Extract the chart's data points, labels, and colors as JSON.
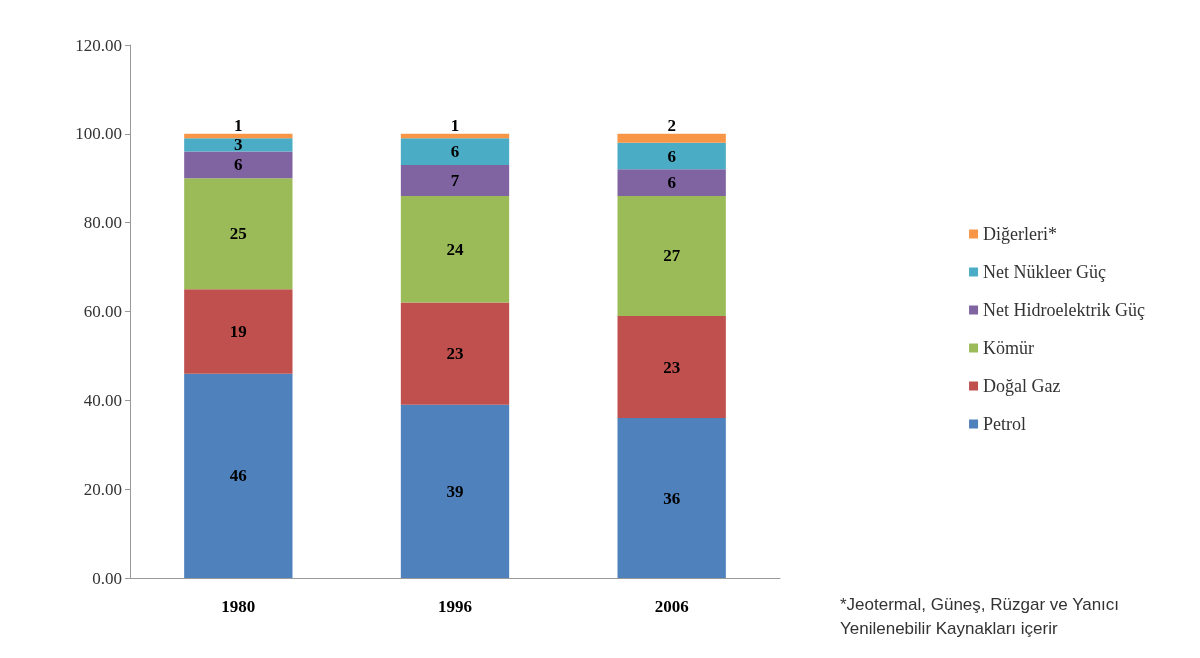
{
  "chart_data": {
    "type": "bar",
    "stacked": true,
    "categories": [
      "1980",
      "1996",
      "2006"
    ],
    "series": [
      {
        "name": "Petrol",
        "color": "#4f81bd",
        "values": [
          46,
          39,
          36
        ]
      },
      {
        "name": "Doğal Gaz",
        "color": "#c0504d",
        "values": [
          19,
          23,
          23
        ]
      },
      {
        "name": "Kömür",
        "color": "#9bbb59",
        "values": [
          25,
          24,
          27
        ]
      },
      {
        "name": "Net Hidroelektrik Güç",
        "color": "#8064a2",
        "values": [
          6,
          7,
          6
        ]
      },
      {
        "name": "Net Nükleer Güç",
        "color": "#4bacc6",
        "values": [
          3,
          6,
          6
        ]
      },
      {
        "name": "Diğerleri*",
        "color": "#f79646",
        "values": [
          1,
          1,
          2
        ]
      }
    ],
    "ylim": [
      0,
      120
    ],
    "yticks": [
      {
        "value": 0,
        "label": "0.00"
      },
      {
        "value": 20,
        "label": "20.00"
      },
      {
        "value": 40,
        "label": "40.00"
      },
      {
        "value": 60,
        "label": "60.00"
      },
      {
        "value": 80,
        "label": "80.00"
      },
      {
        "value": 100,
        "label": "100.00"
      },
      {
        "value": 120,
        "label": "120.00"
      }
    ],
    "grid": false,
    "legend": "right",
    "data_labels": true,
    "annotations": [
      "*Jeotermal, Güneş, Rüzgar ve Yanıcı Yenilenebilir Kaynakları içerir"
    ]
  }
}
